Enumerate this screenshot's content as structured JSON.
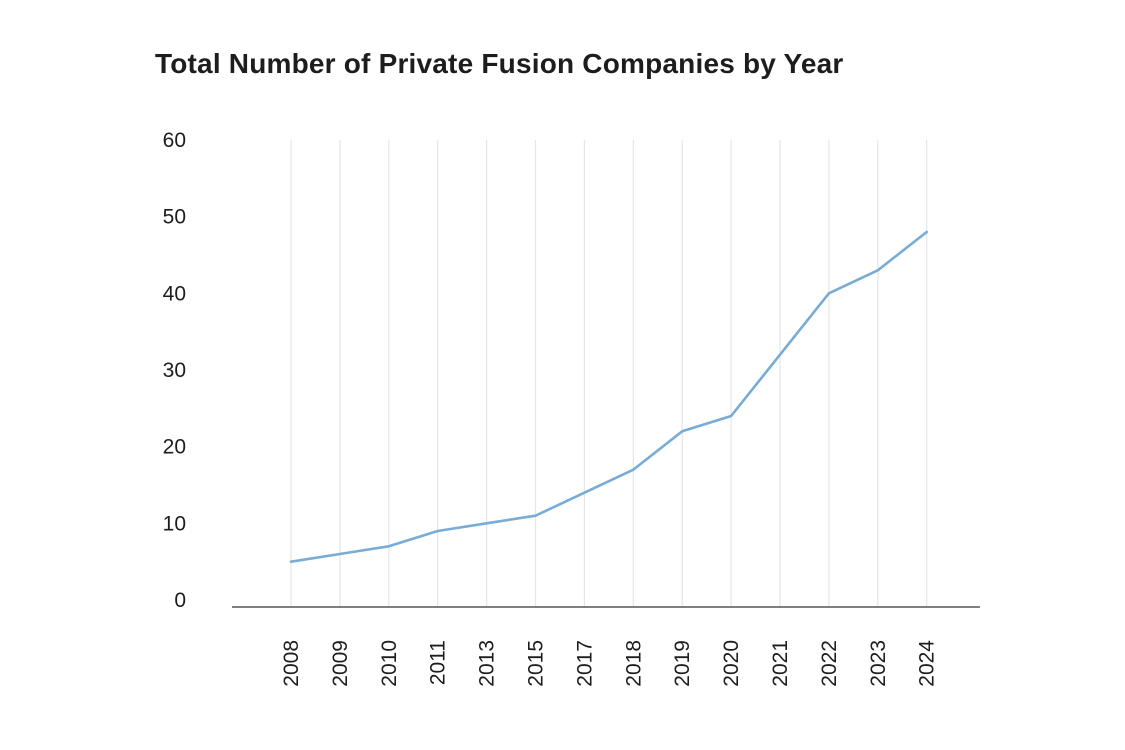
{
  "chart_data": {
    "type": "line",
    "title": "Total Number of Private Fusion Companies by Year",
    "xlabel": "",
    "ylabel": "",
    "categories": [
      "2008",
      "2009",
      "2010",
      "2011",
      "2013",
      "2015",
      "2017",
      "2018",
      "2019",
      "2020",
      "2021",
      "2022",
      "2023",
      "2024"
    ],
    "series": [
      {
        "values": [
          5,
          6,
          7,
          9,
          10,
          11,
          14,
          17,
          22,
          24,
          32,
          40,
          43,
          48
        ]
      }
    ],
    "ylim": [
      0,
      60
    ],
    "yticks": [
      "0",
      "10",
      "20",
      "30",
      "40",
      "50",
      "60"
    ],
    "grid": "vertical",
    "legend": "none",
    "colors": {
      "line": "#78acd6",
      "grid": "#e6e6e6",
      "axis": "#333333",
      "text": "#1d1d1f"
    }
  }
}
